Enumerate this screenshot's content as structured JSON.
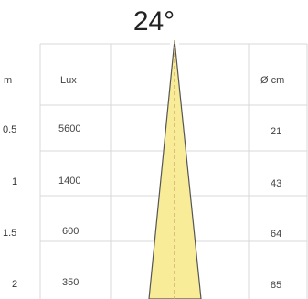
{
  "title": "24°",
  "headers": {
    "distance": "m",
    "lux": "Lux",
    "diameter": "Ø cm"
  },
  "rows": [
    {
      "distance": "0.5",
      "lux": "5600",
      "diameter": "21"
    },
    {
      "distance": "1",
      "lux": "1400",
      "diameter": "43"
    },
    {
      "distance": "1.5",
      "lux": "600",
      "diameter": "64"
    },
    {
      "distance": "2",
      "lux": "350",
      "diameter": "85"
    }
  ],
  "colors": {
    "beam_fill": "#f8ec98",
    "beam_outline": "#555555",
    "grid": "#d8d8d8",
    "axis_dash": "#d0a868"
  }
}
